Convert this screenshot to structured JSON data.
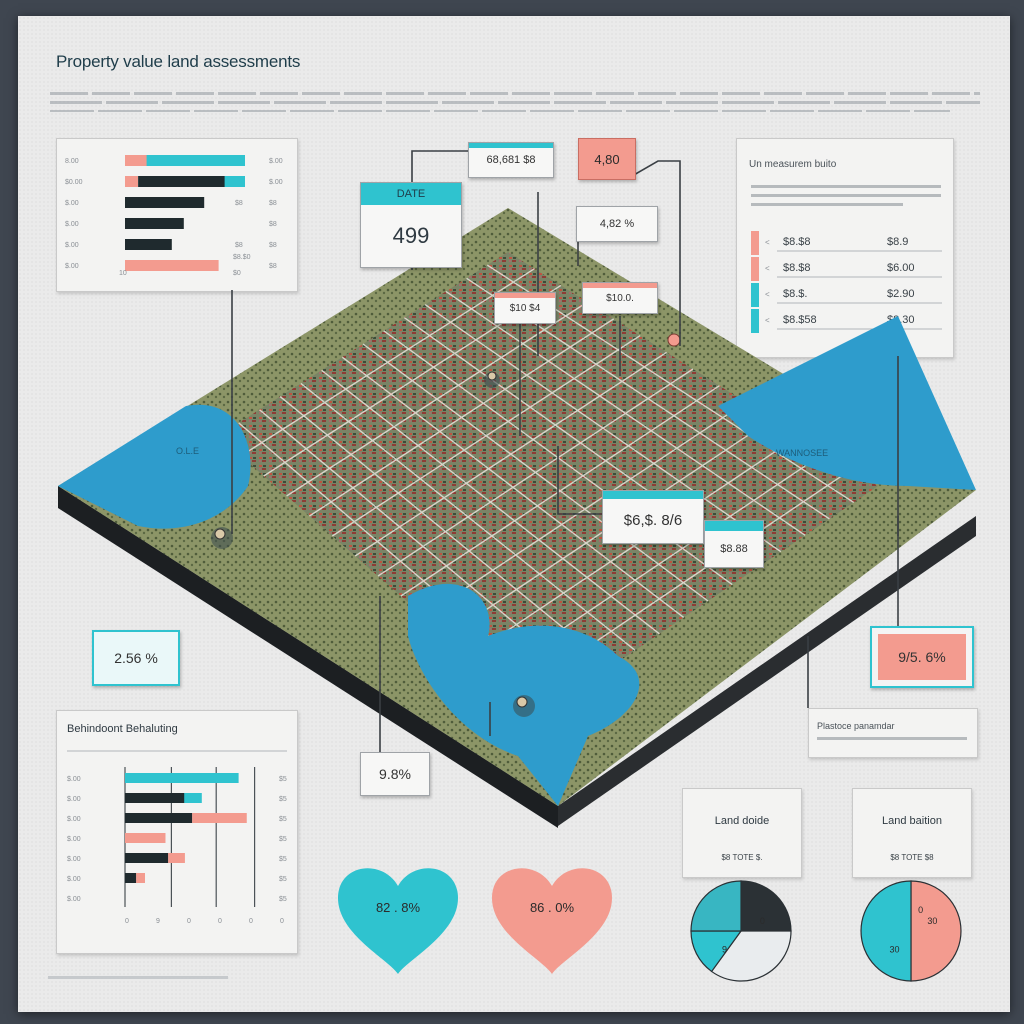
{
  "title": "Property value land assessments",
  "top_chart": {
    "rows": [
      {
        "label": "8.00",
        "teal": 1.0,
        "coral": 0.18,
        "dark": 0.0,
        "value": "$.00"
      },
      {
        "label": "$0.00",
        "teal": 1.0,
        "coral": 0.11,
        "dark": 0.72,
        "value": "$.00"
      },
      {
        "label": "$.00",
        "teal": 0.0,
        "coral": 0.0,
        "dark": 0.66,
        "value": "$8"
      },
      {
        "label": "$.00",
        "teal": 0.0,
        "coral": 0.0,
        "dark": 0.49,
        "value": "$8"
      },
      {
        "label": "$.00",
        "teal": 0.0,
        "coral": 0.0,
        "dark": 0.39,
        "value": "$8"
      },
      {
        "label": "$.00",
        "teal": 0.0,
        "coral": 0.78,
        "dark": 0.0,
        "value": "$8"
      }
    ],
    "bar_value_labels": [
      "",
      "",
      "$8",
      "",
      "$8",
      ""
    ],
    "end_labels": [
      "$8.$0"
    ],
    "axis": [
      "10",
      "$0"
    ]
  },
  "callouts": {
    "date_box": {
      "header": "DATE",
      "value": "499"
    },
    "c1": "68,681 $8",
    "c2": "4,80",
    "c3": "4,82 %",
    "c4": "$10 $4",
    "c5": "$10.0.",
    "c6": "$6,$. 8/6",
    "c7": "$8.88",
    "c8": "2.56 %",
    "c9": "9.8%",
    "c10": "9/5. 6%"
  },
  "map": {
    "lake_left": "O.L.E",
    "lake_right": "WANNOSEE"
  },
  "right_panel": {
    "title": "Un measurem buito",
    "rows": [
      {
        "swatch": "#f39b8f",
        "a": "$8.$8",
        "b": "$8.9"
      },
      {
        "swatch": "#f39b8f",
        "a": "$8.$8",
        "b": "$6.00"
      },
      {
        "swatch": "#2fc3cf",
        "a": "$8.$.",
        "b": "$2.90"
      },
      {
        "swatch": "#2fc3cf",
        "a": "$8.$58",
        "b": "$8.30"
      }
    ],
    "markers": [
      "<",
      "<",
      "<",
      "<"
    ]
  },
  "bottom_chart": {
    "title": "Behindoont Behaluting",
    "rows": [
      {
        "teal": 0.71,
        "coral": 0.0,
        "dark": 0.0
      },
      {
        "teal": 0.48,
        "coral": 0.0,
        "dark": 0.37
      },
      {
        "teal": 0.0,
        "coral": 0.62,
        "dark": 0.42
      },
      {
        "teal": 0.0,
        "coral": 0.46,
        "dark": 0.0
      },
      {
        "teal": 0.0,
        "coral": 0.19,
        "dark": 0.27
      },
      {
        "teal": 0.0,
        "coral": 0.1,
        "dark": 0.07
      },
      {
        "teal": 0.0,
        "coral": 0.0,
        "dark": 0.0
      }
    ],
    "left_labels": [
      "$.00",
      "$.00",
      "$.00",
      "$.00",
      "$.00",
      "$.00",
      "$.00"
    ],
    "right_labels": [
      "$5",
      "$5",
      "$5",
      "$5",
      "$5",
      "$5",
      "$5"
    ],
    "axis": [
      "0",
      "9",
      "0",
      "0",
      "0",
      "0"
    ]
  },
  "plot_panel": {
    "title": "Plastoce panamdar"
  },
  "hearts": [
    {
      "color": "#2fc3cf",
      "text": "82 . 8%"
    },
    {
      "color": "#f39b8f",
      "text": "86 . 0%"
    }
  ],
  "pies": [
    {
      "header": "Land doide",
      "row": "$8 TOTE $.",
      "slices": [
        {
          "color": "#2b3135",
          "value": 0.25
        },
        {
          "color": "#e9ecee",
          "value": 0.35
        },
        {
          "color": "#2fc3cf",
          "value": 0.15
        },
        {
          "color": "#38b6c2",
          "value": 0.25
        }
      ],
      "labels": [
        "0",
        "9"
      ]
    },
    {
      "header": "Land baition",
      "row": "$8 TOTE $8",
      "slices": [
        {
          "color": "#f39b8f",
          "value": 0.5
        },
        {
          "color": "#2fc3cf",
          "value": 0.5
        },
        {
          "color": "#f39b8f",
          "value": 0.0
        }
      ],
      "labels": [
        "30",
        "30",
        "0"
      ]
    }
  ]
}
